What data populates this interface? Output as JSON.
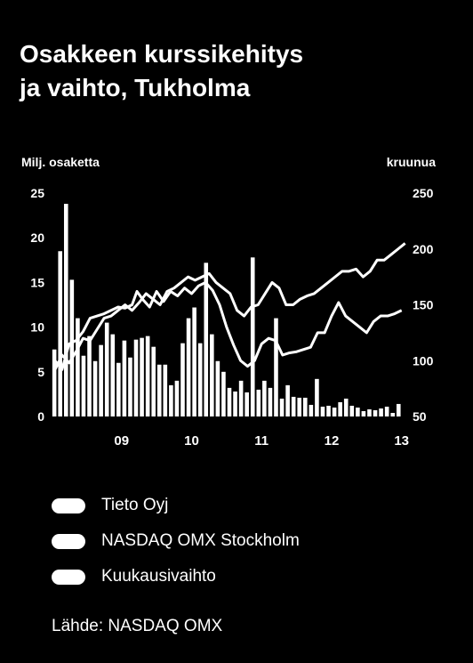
{
  "title": {
    "line1": "Osakkeen kurssikehitys",
    "line2": "ja vaihto, Tukholma"
  },
  "legend": [
    "Tieto Oyj",
    "NASDAQ OMX Stockholm",
    "Kuukausivaihto"
  ],
  "source": "Lähde: NASDAQ OMX",
  "colors": {
    "background": "#000000",
    "foreground": "#ffffff"
  },
  "chart_data": {
    "type": "bar",
    "left_axis": {
      "label": "Milj. osaketta",
      "ticks": [
        "0",
        "5",
        "10",
        "15",
        "20",
        "25"
      ],
      "range": [
        0,
        25
      ]
    },
    "right_axis": {
      "label": "kruunua",
      "ticks": [
        "50",
        "100",
        "150",
        "200",
        "250"
      ],
      "range": [
        50,
        250
      ]
    },
    "x_labels": [
      "09",
      "10",
      "11",
      "12",
      "13"
    ],
    "x_range": [
      2008.5,
      2013.58
    ],
    "grid": false,
    "legend_position": "bottom",
    "bar_series": {
      "name": "Kuukausivaihto",
      "axis": "left",
      "start": 2008.54,
      "step": 0.08333,
      "values": [
        7.5,
        18.5,
        23.8,
        15.3,
        11.0,
        6.8,
        9.0,
        6.2,
        8.0,
        10.5,
        9.2,
        6.0,
        8.5,
        6.6,
        8.6,
        8.8,
        9.0,
        7.8,
        5.8,
        5.8,
        3.5,
        4.0,
        8.2,
        11.0,
        12.2,
        8.2,
        17.2,
        9.2,
        6.2,
        5.0,
        3.2,
        2.8,
        4.0,
        2.7,
        17.8,
        3.0,
        4.0,
        3.2,
        11.0,
        2.0,
        3.5,
        2.2,
        2.1,
        2.1,
        1.3,
        4.2,
        1.1,
        1.2,
        1.0,
        1.6,
        2.0,
        1.2,
        1.0,
        0.6,
        0.8,
        0.7,
        0.9,
        1.1,
        0.4,
        1.4
      ]
    },
    "series": [
      {
        "name": "Tieto Oyj",
        "axis": "right",
        "x": [
          2008.55,
          2008.65,
          2008.75,
          2008.85,
          2008.95,
          2009.05,
          2009.15,
          2009.25,
          2009.35,
          2009.45,
          2009.55,
          2009.65,
          2009.72,
          2009.8,
          2009.9,
          2010.0,
          2010.1,
          2010.2,
          2010.3,
          2010.4,
          2010.5,
          2010.6,
          2010.7,
          2010.8,
          2010.9,
          2011.0,
          2011.1,
          2011.2,
          2011.3,
          2011.4,
          2011.5,
          2011.6,
          2011.7,
          2011.8,
          2011.9,
          2012.0,
          2012.1,
          2012.2,
          2012.3,
          2012.4,
          2012.5,
          2012.6,
          2012.7,
          2012.8,
          2012.9,
          2013.0,
          2013.1,
          2013.2,
          2013.3,
          2013.4,
          2013.5
        ],
        "values": [
          100,
          92,
          115,
          118,
          126,
          138,
          140,
          142,
          145,
          148,
          147,
          150,
          162,
          155,
          148,
          162,
          153,
          162,
          158,
          165,
          160,
          167,
          170,
          163,
          150,
          130,
          114,
          100,
          95,
          100,
          115,
          120,
          118,
          105,
          107,
          108,
          110,
          112,
          125,
          125,
          140,
          152,
          140,
          135,
          130,
          125,
          135,
          140,
          140,
          142,
          145
        ]
      },
      {
        "name": "NASDAQ OMX Stockholm",
        "axis": "right",
        "x": [
          2008.55,
          2008.65,
          2008.75,
          2008.85,
          2008.95,
          2009.05,
          2009.15,
          2009.25,
          2009.35,
          2009.45,
          2009.55,
          2009.65,
          2009.75,
          2009.85,
          2009.95,
          2010.05,
          2010.15,
          2010.25,
          2010.35,
          2010.45,
          2010.55,
          2010.65,
          2010.75,
          2010.85,
          2010.95,
          2011.05,
          2011.15,
          2011.25,
          2011.35,
          2011.45,
          2011.55,
          2011.65,
          2011.75,
          2011.85,
          2011.95,
          2012.05,
          2012.15,
          2012.25,
          2012.35,
          2012.45,
          2012.55,
          2012.65,
          2012.75,
          2012.85,
          2012.95,
          2013.05,
          2013.15,
          2013.25,
          2013.35,
          2013.45,
          2013.55
        ],
        "values": [
          92,
          105,
          98,
          108,
          120,
          118,
          128,
          138,
          140,
          145,
          150,
          145,
          152,
          160,
          155,
          150,
          162,
          165,
          170,
          175,
          172,
          175,
          178,
          170,
          165,
          160,
          145,
          140,
          148,
          150,
          160,
          170,
          165,
          150,
          150,
          155,
          158,
          160,
          165,
          170,
          175,
          180,
          180,
          182,
          175,
          180,
          190,
          190,
          195,
          200,
          205
        ]
      }
    ]
  }
}
